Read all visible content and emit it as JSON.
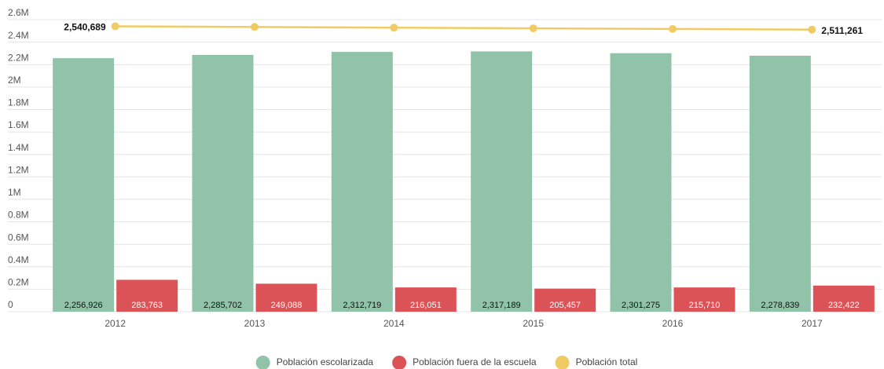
{
  "chart_data": {
    "type": "bar_line",
    "categories": [
      "2012",
      "2013",
      "2014",
      "2015",
      "2016",
      "2017"
    ],
    "series": [
      {
        "name": "Población escolarizada",
        "color": "#91c3a8",
        "type": "bar",
        "values": [
          2256926,
          2285702,
          2312719,
          2317189,
          2301275,
          2278839
        ],
        "value_labels": [
          "2,256,926",
          "2,285,702",
          "2,312,719",
          "2,317,189",
          "2,301,275",
          "2,278,839"
        ]
      },
      {
        "name": "Población fuera de la escuela",
        "color": "#dc5357",
        "type": "bar",
        "values": [
          283763,
          249088,
          216051,
          205457,
          215710,
          232422
        ],
        "value_labels": [
          "283,763",
          "249,088",
          "216,051",
          "205,457",
          "215,710",
          "232,422"
        ]
      },
      {
        "name": "Población total",
        "color": "#f0cb64",
        "type": "line",
        "values": [
          2540689,
          2534790,
          2528770,
          2522646,
          2516985,
          2511261
        ],
        "value_labels": [
          "2,540,689",
          null,
          null,
          null,
          null,
          "2,511,261"
        ]
      }
    ],
    "ylim": [
      0,
      2600000
    ],
    "yticks": [
      0,
      {
        "value": 200000,
        "label": "0.2M"
      },
      {
        "value": 400000,
        "label": "0.4M"
      },
      {
        "value": 600000,
        "label": "0.6M"
      },
      {
        "value": 800000,
        "label": "0.8M"
      },
      {
        "value": 1000000,
        "label": "1M"
      },
      {
        "value": 1200000,
        "label": "1.2M"
      },
      {
        "value": 1400000,
        "label": "1.4M"
      },
      {
        "value": 1600000,
        "label": "1.6M"
      },
      {
        "value": 1800000,
        "label": "1.8M"
      },
      {
        "value": 2000000,
        "label": "2M"
      },
      {
        "value": 2200000,
        "label": "2.2M"
      },
      {
        "value": 2400000,
        "label": "2.4M"
      },
      {
        "value": 2600000,
        "label": "2.6M"
      }
    ],
    "grid": true,
    "legend": "bottom"
  }
}
